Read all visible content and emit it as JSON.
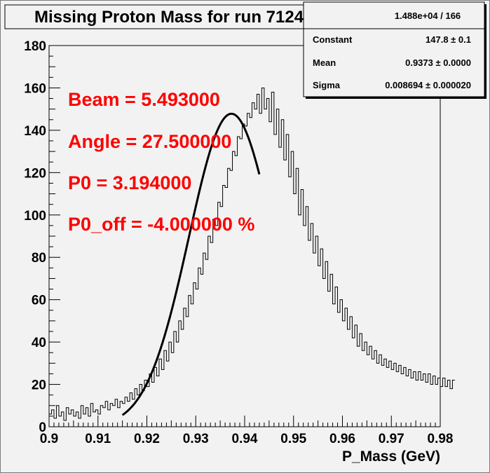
{
  "title": "Missing Proton Mass for run 7124",
  "stats": {
    "entries": "1.488e+04 / 166",
    "rows": [
      {
        "label": "Constant",
        "value": "147.8 ± 0.1"
      },
      {
        "label": "Mean",
        "value": "0.9373 ± 0.0000"
      },
      {
        "label": "Sigma",
        "value": "0.008694 ± 0.000020"
      }
    ]
  },
  "annotations": [
    "Beam = 5.493000",
    "Angle = 27.500000",
    "P0 = 3.194000",
    "P0_off = -4.000000 %"
  ],
  "chart_data": {
    "type": "line",
    "xlabel": "P_Mass (GeV)",
    "ylabel": "",
    "xlim": [
      0.9,
      0.98
    ],
    "ylim": [
      0,
      180
    ],
    "x_ticks": [
      "0.9",
      "0.91",
      "0.92",
      "0.93",
      "0.94",
      "0.95",
      "0.96",
      "0.97",
      "0.98"
    ],
    "y_ticks": [
      "0",
      "20",
      "40",
      "60",
      "80",
      "100",
      "120",
      "140",
      "160",
      "180"
    ],
    "grid": false,
    "histogram": {
      "x_start": 0.9,
      "bin_width": 0.0005,
      "counts": [
        6,
        8,
        4,
        10,
        5,
        7,
        3,
        9,
        6,
        8,
        5,
        7,
        4,
        10,
        6,
        9,
        5,
        11,
        7,
        8,
        6,
        10,
        9,
        12,
        8,
        11,
        10,
        13,
        9,
        12,
        11,
        14,
        12,
        16,
        13,
        18,
        15,
        20,
        17,
        22,
        19,
        25,
        21,
        28,
        24,
        32,
        27,
        36,
        31,
        40,
        35,
        45,
        40,
        50,
        46,
        56,
        52,
        62,
        58,
        68,
        65,
        75,
        72,
        82,
        79,
        90,
        87,
        98,
        95,
        106,
        104,
        114,
        113,
        122,
        121,
        130,
        128,
        137,
        136,
        143,
        142,
        148,
        146,
        153,
        150,
        157,
        148,
        160,
        150,
        155,
        144,
        158,
        138,
        150,
        132,
        145,
        126,
        138,
        118,
        130,
        110,
        122,
        100,
        112,
        95,
        104,
        88,
        96,
        82,
        90,
        76,
        84,
        70,
        78,
        64,
        72,
        58,
        66,
        54,
        60,
        50,
        56,
        46,
        52,
        42,
        48,
        38,
        44,
        36,
        40,
        34,
        38,
        32,
        36,
        30,
        34,
        29,
        32,
        28,
        31,
        27,
        30,
        26,
        29,
        25,
        28,
        24,
        27,
        23,
        26,
        22,
        26,
        22,
        25,
        21,
        25,
        20,
        24,
        20,
        23,
        19,
        23,
        19,
        22,
        18,
        22
      ],
      "color": "#000000"
    },
    "fit": {
      "name": "gaus",
      "constant": 147.8,
      "mean": 0.9373,
      "sigma": 0.008694,
      "x_range": [
        0.915,
        0.943
      ],
      "color": "#000000"
    },
    "annotation_color": "#ff0000"
  }
}
